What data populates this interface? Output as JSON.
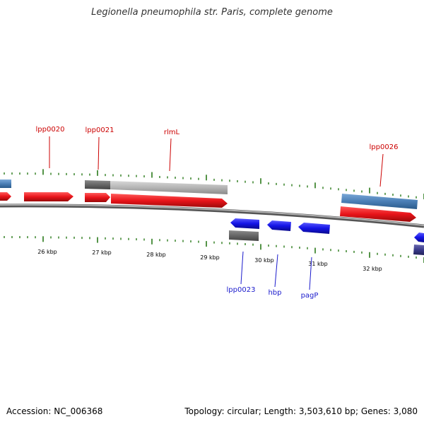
{
  "title": "Legionella pneumophila str. Paris, complete genome",
  "footer": {
    "accession": "Accession: NC_006368",
    "summary": "Topology: circular; Length: 3,503,610 bp; Genes: 3,080"
  },
  "colors": {
    "forward_gene": "#e8141a",
    "reverse_gene": "#1a1ae6",
    "tick": "#2a7a1a",
    "backbone": "#808080",
    "forward_label": "#cc0000",
    "reverse_label": "#1a1acc",
    "blue_feature": "#4a7eb5",
    "gray_feature": "#a8a8a8"
  },
  "ruler": {
    "labels": [
      {
        "text": "26 kbp",
        "kbp": 26
      },
      {
        "text": "27 kbp",
        "kbp": 27
      },
      {
        "text": "28 kbp",
        "kbp": 28
      },
      {
        "text": "29 kbp",
        "kbp": 29
      },
      {
        "text": "30 kbp",
        "kbp": 30
      },
      {
        "text": "31 kbp",
        "kbp": 31
      },
      {
        "text": "32 kbp",
        "kbp": 32
      }
    ]
  },
  "genes": {
    "forward_labels": [
      {
        "name": "lpp0020"
      },
      {
        "name": "lpp0021"
      },
      {
        "name": "rlmL"
      },
      {
        "name": "lpp0026"
      }
    ],
    "reverse_labels": [
      {
        "name": "lpp0023"
      },
      {
        "name": "hbp"
      },
      {
        "name": "pagP"
      }
    ]
  }
}
